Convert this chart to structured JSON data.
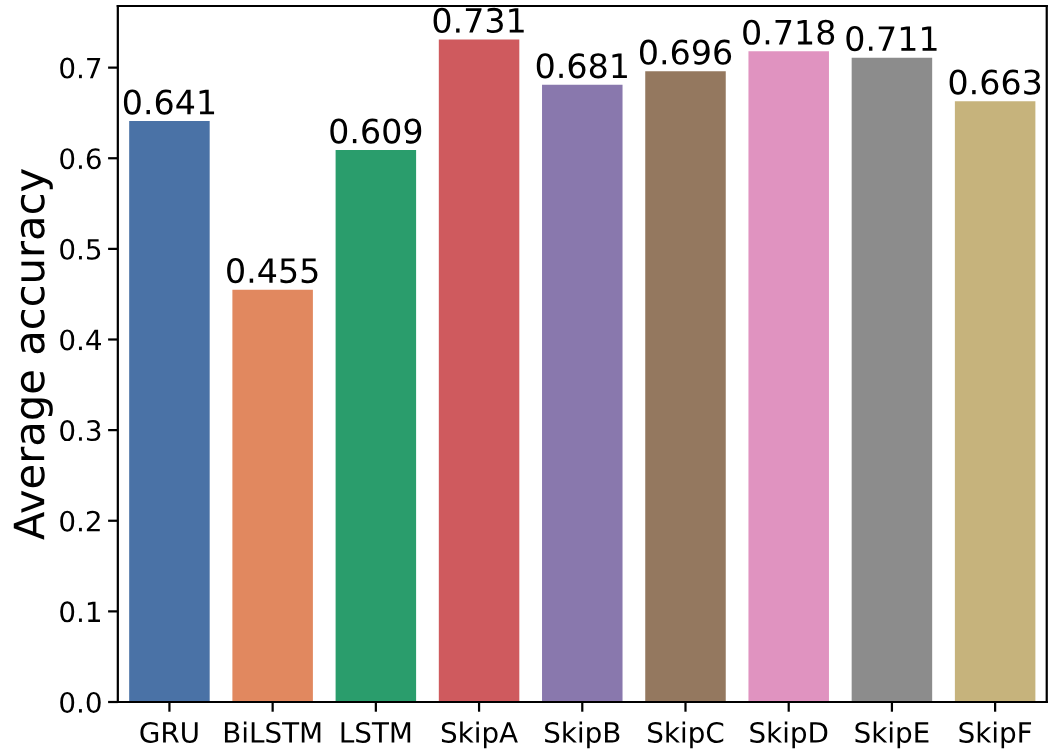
{
  "chart_data": {
    "type": "bar",
    "ylabel": "Average accuracy",
    "categories": [
      "GRU",
      "BiLSTM",
      "LSTM",
      "SkipA",
      "SkipB",
      "SkipC",
      "SkipD",
      "SkipE",
      "SkipF"
    ],
    "values": [
      0.641,
      0.455,
      0.609,
      0.731,
      0.681,
      0.696,
      0.718,
      0.711,
      0.663
    ],
    "colors": [
      "#4a72a6",
      "#e1885f",
      "#2a9d6c",
      "#cf5a5e",
      "#8978ad",
      "#94785f",
      "#e093c0",
      "#8c8c8c",
      "#c6b37c"
    ],
    "ylim": [
      0,
      0.768
    ],
    "yticks": [
      {
        "value": 0,
        "label": "0.0"
      },
      0.1,
      0.2,
      0.3,
      0.4,
      0.5,
      0.6,
      0.7
    ],
    "data_labels": true,
    "grid": false,
    "legend": false
  }
}
